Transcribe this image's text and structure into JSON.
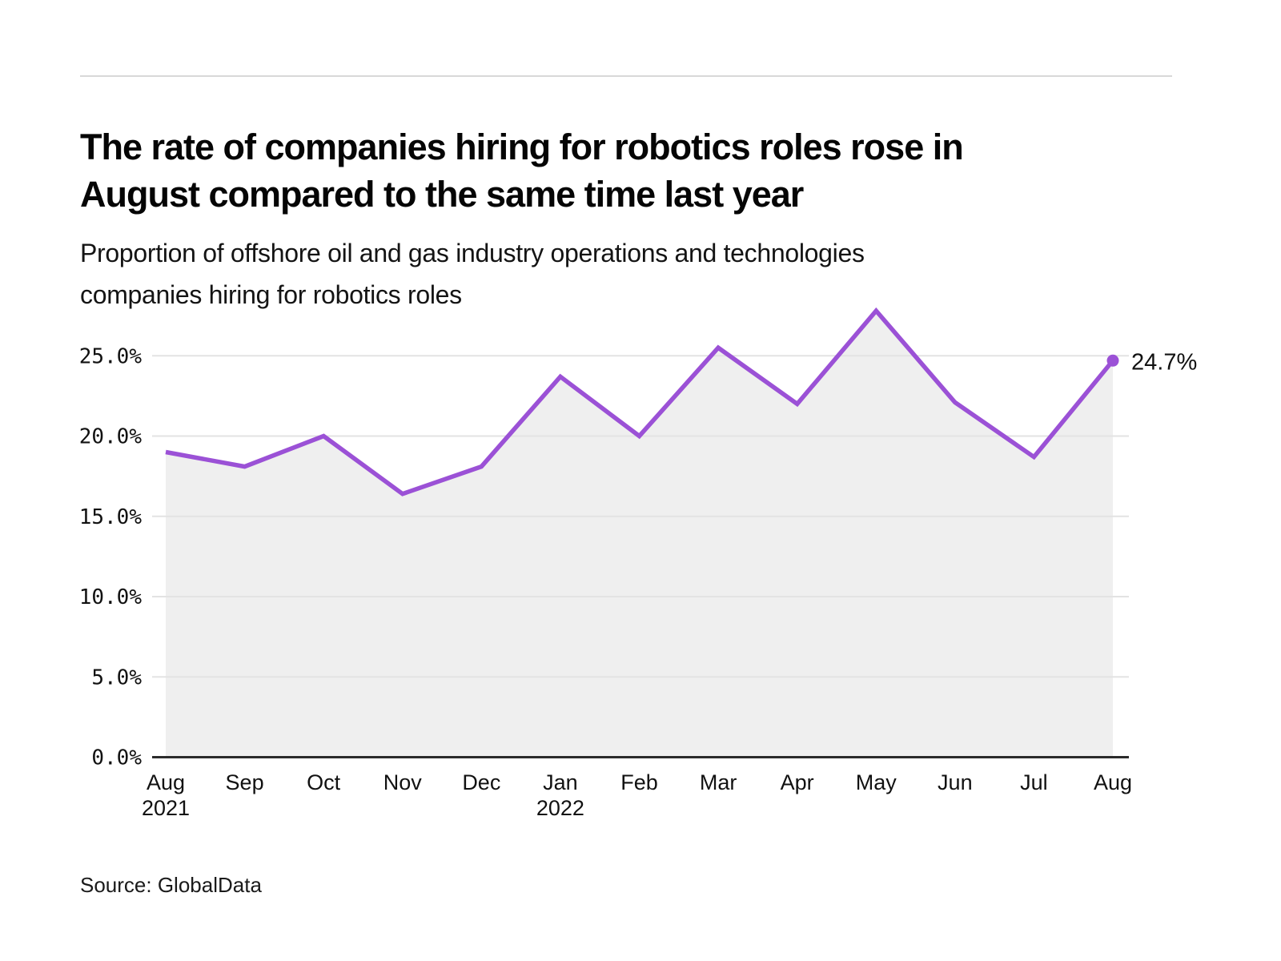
{
  "page": {
    "title_line1": "The rate of companies hiring for robotics roles rose in",
    "title_line2": "August compared to the same time last year",
    "subtitle_line1": "Proportion of offshore oil and gas industry operations and technologies",
    "subtitle_line2": "companies hiring for robotics roles",
    "source": "Source: GlobalData"
  },
  "chart_data": {
    "type": "line",
    "title": "The rate of companies hiring for robotics roles rose in August compared to the same time last year",
    "subtitle": "Proportion of offshore oil and gas industry operations and technologies companies hiring for robotics roles",
    "source": "Source: GlobalData",
    "categories": [
      "Aug",
      "Sep",
      "Oct",
      "Nov",
      "Dec",
      "Jan",
      "Feb",
      "Mar",
      "Apr",
      "May",
      "Jun",
      "Jul",
      "Aug"
    ],
    "year_labels": [
      {
        "index": 0,
        "label": "2021"
      },
      {
        "index": 5,
        "label": "2022"
      }
    ],
    "values": [
      19.0,
      18.1,
      20.0,
      16.4,
      18.1,
      23.7,
      20.0,
      25.5,
      22.0,
      27.8,
      22.1,
      18.7,
      24.7
    ],
    "unit": "%",
    "last_point_label": "24.7%",
    "y_ticks": [
      {
        "value": 25,
        "label": "25.0%"
      },
      {
        "value": 20,
        "label": "20.0%"
      },
      {
        "value": 15,
        "label": "15.0%"
      },
      {
        "value": 10,
        "label": "10.0%"
      },
      {
        "value": 5,
        "label": "5.0%"
      },
      {
        "value": 0,
        "label": "0.0%"
      }
    ],
    "ylim": [
      0,
      28.5
    ],
    "grid": true,
    "legend": null,
    "colors": {
      "line": "#9B51D6",
      "dot": "#9B51D6",
      "area": "#EFEFEF",
      "grid": "#E3E3E3",
      "axis": "#2B2B2B",
      "text": "#111111"
    }
  }
}
